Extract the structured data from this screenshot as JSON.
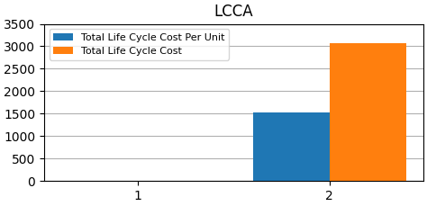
{
  "chart_data": {
    "type": "bar",
    "title": "LCCA",
    "categories": [
      "1",
      "2"
    ],
    "series": [
      {
        "name": "Total Life Cycle Cost Per Unit",
        "values": [
          0,
          1532
        ]
      },
      {
        "name": "Total Life Cycle Cost",
        "values": [
          0,
          3064
        ]
      }
    ],
    "ylim": [
      0,
      3500
    ],
    "yticks": [
      0,
      500,
      1000,
      1500,
      2000,
      2500,
      3000,
      3500
    ],
    "grid": true,
    "legend": "upper left"
  }
}
